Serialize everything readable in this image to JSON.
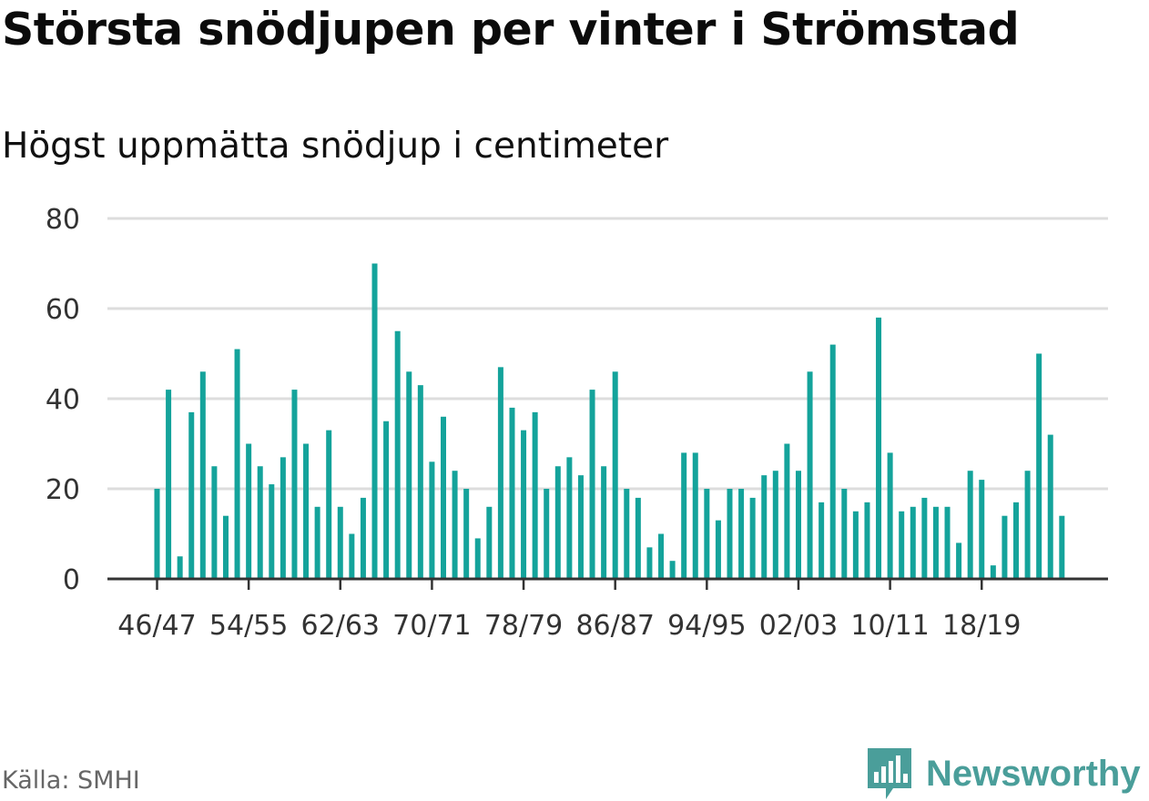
{
  "chart_data": {
    "type": "bar",
    "title": "Största snödjupen per vinter i Strömstad",
    "subtitle": "Högst uppmätta snödjup i centimeter",
    "xlabel": "",
    "ylabel": "",
    "ylim": [
      0,
      80
    ],
    "yticks": [
      0,
      20,
      40,
      60,
      80
    ],
    "grid": true,
    "bar_color": "#14a39b",
    "tick_labels": [
      "46/47",
      "54/55",
      "62/63",
      "70/71",
      "78/79",
      "86/87",
      "94/95",
      "02/03",
      "10/11",
      "18/19"
    ],
    "categories": [
      "46/47",
      "47/48",
      "48/49",
      "49/50",
      "50/51",
      "51/52",
      "52/53",
      "53/54",
      "54/55",
      "55/56",
      "56/57",
      "57/58",
      "58/59",
      "59/60",
      "60/61",
      "61/62",
      "62/63",
      "63/64",
      "64/65",
      "65/66",
      "66/67",
      "67/68",
      "68/69",
      "69/70",
      "70/71",
      "71/72",
      "72/73",
      "73/74",
      "74/75",
      "75/76",
      "76/77",
      "77/78",
      "78/79",
      "79/80",
      "80/81",
      "81/82",
      "82/83",
      "83/84",
      "84/85",
      "85/86",
      "86/87",
      "87/88",
      "88/89",
      "89/90",
      "90/91",
      "91/92",
      "92/93",
      "93/94",
      "94/95",
      "95/96",
      "96/97",
      "97/98",
      "98/99",
      "99/00",
      "00/01",
      "01/02",
      "02/03",
      "03/04",
      "04/05",
      "05/06",
      "06/07",
      "07/08",
      "08/09",
      "09/10",
      "10/11",
      "11/12",
      "12/13",
      "13/14",
      "14/15",
      "15/16",
      "16/17",
      "17/18",
      "18/19",
      "19/20",
      "20/21",
      "21/22",
      "22/23",
      "23/24",
      "24/25",
      "25/26"
    ],
    "values": [
      20,
      42,
      5,
      37,
      46,
      25,
      14,
      51,
      30,
      25,
      21,
      27,
      42,
      30,
      16,
      33,
      16,
      10,
      18,
      70,
      35,
      55,
      46,
      43,
      26,
      36,
      24,
      20,
      9,
      16,
      47,
      38,
      33,
      37,
      20,
      25,
      27,
      23,
      42,
      25,
      46,
      20,
      18,
      7,
      10,
      4,
      28,
      28,
      20,
      13,
      20,
      20,
      18,
      23,
      24,
      30,
      24,
      46,
      17,
      52,
      20,
      15,
      17,
      58,
      28,
      15,
      16,
      18,
      16,
      16,
      8,
      24,
      22,
      3,
      14,
      17,
      24,
      50,
      32,
      14
    ]
  },
  "footer": {
    "source": "Källa: SMHI",
    "brand": "Newsworthy",
    "brand_color": "#4a9e9a"
  }
}
